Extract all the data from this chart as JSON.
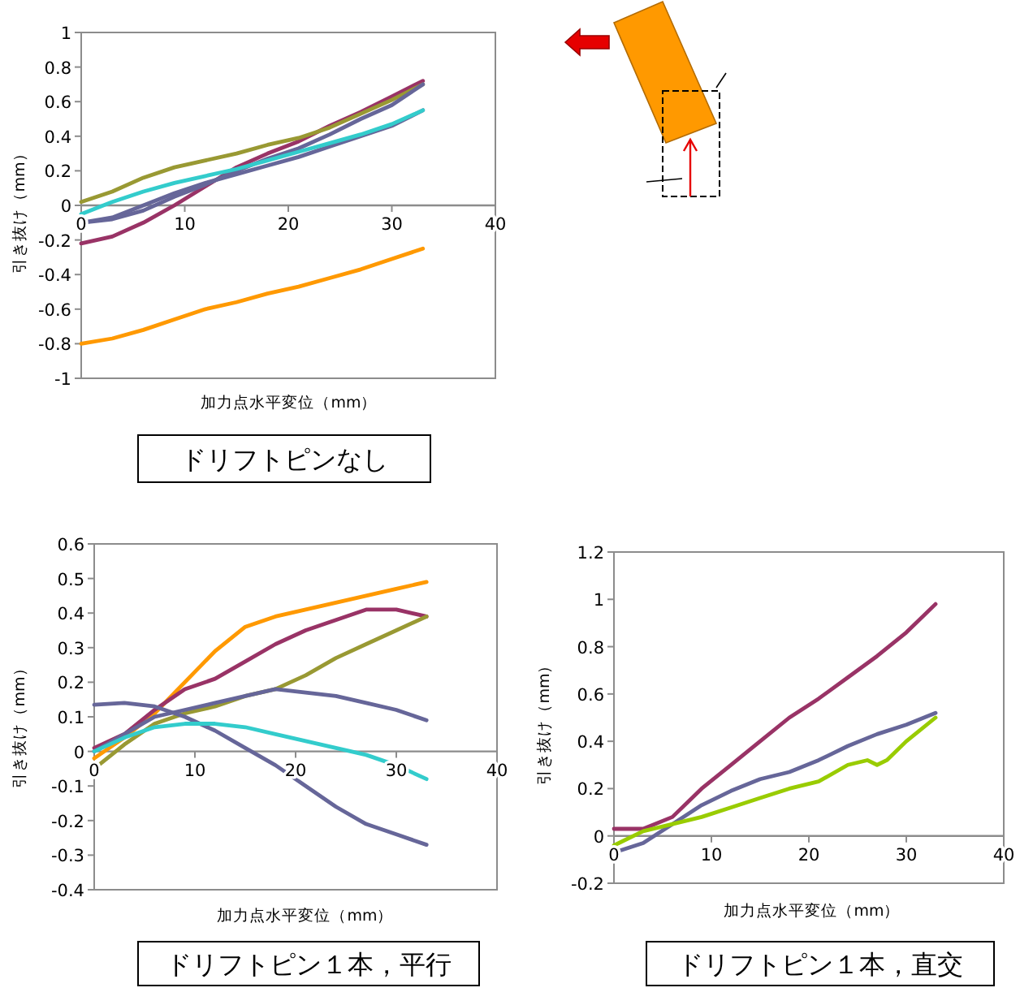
{
  "chart_data": [
    {
      "type": "line",
      "title": "ドリフトピンなし",
      "xlabel": "加力点水平変位（mm）",
      "ylabel": "引き抜け（mm）",
      "x": [
        0,
        3,
        6,
        9,
        12,
        15,
        18,
        21,
        24,
        27,
        30,
        33
      ],
      "xlim": [
        0,
        40
      ],
      "xticks": [
        0,
        10,
        20,
        30,
        40
      ],
      "ylim": [
        -1,
        1
      ],
      "yticks": [
        -1,
        -0.8,
        -0.6,
        -0.4,
        -0.2,
        0,
        0.2,
        0.4,
        0.6,
        0.8,
        1
      ],
      "series": [
        {
          "color": "#993366",
          "values": [
            -0.22,
            -0.18,
            -0.1,
            0.0,
            0.11,
            0.22,
            0.3,
            0.37,
            0.46,
            0.54,
            0.63,
            0.72
          ]
        },
        {
          "color": "#999933",
          "values": [
            0.02,
            0.08,
            0.16,
            0.22,
            0.26,
            0.3,
            0.35,
            0.39,
            0.45,
            0.53,
            0.61,
            0.7
          ]
        },
        {
          "color": "#666699",
          "values": [
            -0.1,
            -0.08,
            -0.03,
            0.05,
            0.12,
            0.2,
            0.27,
            0.33,
            0.41,
            0.5,
            0.58,
            0.7
          ]
        },
        {
          "color": "#666699",
          "values": [
            -0.1,
            -0.07,
            0.0,
            0.07,
            0.13,
            0.18,
            0.23,
            0.28,
            0.34,
            0.4,
            0.46,
            0.55
          ]
        },
        {
          "color": "#33cccc",
          "values": [
            -0.05,
            0.02,
            0.08,
            0.13,
            0.17,
            0.21,
            0.26,
            0.31,
            0.36,
            0.41,
            0.47,
            0.55
          ]
        },
        {
          "color": "#ff9900",
          "values": [
            -0.8,
            -0.77,
            -0.72,
            -0.66,
            -0.6,
            -0.56,
            -0.51,
            -0.47,
            -0.42,
            -0.37,
            -0.31,
            -0.25
          ]
        }
      ]
    },
    {
      "type": "line",
      "title": "ドリフトピン１本，平行",
      "xlabel": "加力点水平変位（mm）",
      "ylabel": "引き抜け（mm）",
      "x": [
        0,
        3,
        6,
        9,
        12,
        15,
        18,
        21,
        24,
        27,
        30,
        33
      ],
      "xlim": [
        0,
        40
      ],
      "xticks": [
        0,
        10,
        20,
        30,
        40
      ],
      "ylim": [
        -0.4,
        0.6
      ],
      "yticks": [
        -0.4,
        -0.3,
        -0.2,
        -0.1,
        0,
        0.1,
        0.2,
        0.3,
        0.4,
        0.5,
        0.6
      ],
      "series": [
        {
          "color": "#ff9900",
          "values": [
            -0.02,
            0.04,
            0.11,
            0.2,
            0.29,
            0.36,
            0.39,
            0.41,
            0.43,
            0.45,
            0.47,
            0.49
          ]
        },
        {
          "color": "#993366",
          "values": [
            0.01,
            0.05,
            0.12,
            0.18,
            0.21,
            0.26,
            0.31,
            0.35,
            0.38,
            0.41,
            0.41,
            0.39
          ]
        },
        {
          "color": "#999933",
          "values": [
            -0.05,
            0.02,
            0.08,
            0.11,
            0.13,
            0.16,
            0.18,
            0.22,
            0.27,
            0.31,
            0.35,
            0.39
          ]
        },
        {
          "color": "#666699",
          "values": [
            0.0,
            0.05,
            0.1,
            0.12,
            0.14,
            0.16,
            0.18,
            0.17,
            0.16,
            0.14,
            0.12,
            0.09
          ]
        },
        {
          "color": "#666699",
          "values": [
            0.135,
            0.14,
            0.13,
            0.1,
            0.06,
            0.01,
            -0.04,
            -0.1,
            -0.16,
            -0.21,
            -0.24,
            -0.27
          ]
        },
        {
          "color": "#33cccc",
          "values": [
            0.0,
            0.04,
            0.07,
            0.08,
            0.08,
            0.07,
            0.05,
            0.03,
            0.01,
            -0.01,
            -0.04,
            -0.08
          ]
        }
      ]
    },
    {
      "type": "line",
      "title": "ドリフトピン１本，直交",
      "xlabel": "加力点水平変位（mm）",
      "ylabel": "引き抜け（mm）",
      "x": [
        0,
        3,
        6,
        9,
        12,
        15,
        18,
        21,
        24,
        27,
        30,
        33
      ],
      "xlim": [
        0,
        40
      ],
      "xticks": [
        0,
        10,
        20,
        30,
        40
      ],
      "ylim": [
        -0.2,
        1.2
      ],
      "yticks": [
        -0.2,
        0,
        0.2,
        0.4,
        0.6,
        0.8,
        1,
        1.2
      ],
      "series": [
        {
          "color": "#993366",
          "values": [
            0.03,
            0.03,
            0.08,
            0.2,
            0.3,
            0.4,
            0.5,
            0.58,
            0.67,
            0.76,
            0.86,
            0.98
          ]
        },
        {
          "color": "#666699",
          "values": [
            -0.07,
            -0.03,
            0.05,
            0.13,
            0.19,
            0.24,
            0.27,
            0.32,
            0.38,
            0.43,
            0.47,
            0.52
          ]
        },
        {
          "color": "#99cc00",
          "x": [
            0,
            3,
            6,
            9,
            12,
            15,
            18,
            21,
            24,
            26,
            27,
            28,
            30,
            33
          ],
          "values": [
            -0.04,
            0.02,
            0.05,
            0.08,
            0.12,
            0.16,
            0.2,
            0.23,
            0.3,
            0.32,
            0.3,
            0.32,
            0.4,
            0.5
          ]
        }
      ]
    }
  ]
}
